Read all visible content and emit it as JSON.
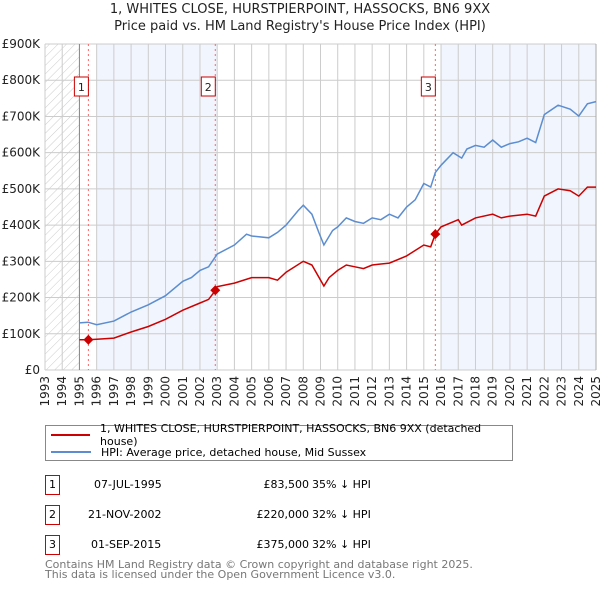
{
  "chart_data": {
    "type": "line",
    "title": "1, WHITES CLOSE, HURSTPIERPOINT, HASSOCKS, BN6 9XX",
    "subtitle": "Price paid vs. HM Land Registry's House Price Index (HPI)",
    "xlim": [
      1993,
      2025
    ],
    "ylim": [
      0,
      900000
    ],
    "x_ticks": [
      "1993",
      "1994",
      "1995",
      "1996",
      "1997",
      "1998",
      "1999",
      "2000",
      "2001",
      "2002",
      "2003",
      "2004",
      "2005",
      "2006",
      "2007",
      "2008",
      "2009",
      "2010",
      "2011",
      "2012",
      "2013",
      "2014",
      "2015",
      "2016",
      "2017",
      "2018",
      "2019",
      "2020",
      "2021",
      "2022",
      "2023",
      "2024",
      "2025"
    ],
    "y_ticks": [
      {
        "v": 0,
        "label": "£0"
      },
      {
        "v": 100000,
        "label": "£100K"
      },
      {
        "v": 200000,
        "label": "£200K"
      },
      {
        "v": 300000,
        "label": "£300K"
      },
      {
        "v": 400000,
        "label": "£400K"
      },
      {
        "v": 500000,
        "label": "£500K"
      },
      {
        "v": 600000,
        "label": "£600K"
      },
      {
        "v": 700000,
        "label": "£700K"
      },
      {
        "v": 800000,
        "label": "£800K"
      },
      {
        "v": 900000,
        "label": "£900K"
      }
    ],
    "grid": true,
    "hatched_range": [
      1993,
      1995
    ],
    "shaded_ranges": [
      [
        1996,
        2003
      ],
      [
        2016,
        2025
      ]
    ],
    "series": [
      {
        "name": "1, WHITES CLOSE, HURSTPIERPOINT, HASSOCKS, BN6 9XX (detached house)",
        "color": "#cc0000",
        "points": [
          [
            1995,
            83500
          ],
          [
            1995.5,
            83500
          ],
          [
            1996,
            85000
          ],
          [
            1997,
            88000
          ],
          [
            1998,
            105000
          ],
          [
            1999,
            120000
          ],
          [
            2000,
            140000
          ],
          [
            2001,
            165000
          ],
          [
            2002,
            185000
          ],
          [
            2002.5,
            195000
          ],
          [
            2002.9,
            220000
          ],
          [
            2003,
            230000
          ],
          [
            2004,
            240000
          ],
          [
            2005,
            255000
          ],
          [
            2006,
            255000
          ],
          [
            2006.5,
            248000
          ],
          [
            2007,
            270000
          ],
          [
            2008,
            300000
          ],
          [
            2008.5,
            290000
          ],
          [
            2009.2,
            232000
          ],
          [
            2009.5,
            255000
          ],
          [
            2010,
            275000
          ],
          [
            2010.5,
            290000
          ],
          [
            2011,
            285000
          ],
          [
            2011.5,
            280000
          ],
          [
            2012,
            290000
          ],
          [
            2013,
            295000
          ],
          [
            2014,
            315000
          ],
          [
            2015,
            345000
          ],
          [
            2015.4,
            340000
          ],
          [
            2015.67,
            375000
          ],
          [
            2016,
            395000
          ],
          [
            2017,
            415000
          ],
          [
            2017.2,
            400000
          ],
          [
            2018,
            420000
          ],
          [
            2019,
            430000
          ],
          [
            2019.5,
            420000
          ],
          [
            2020,
            425000
          ],
          [
            2021,
            430000
          ],
          [
            2021.5,
            425000
          ],
          [
            2022,
            480000
          ],
          [
            2022.8,
            500000
          ],
          [
            2023.5,
            495000
          ],
          [
            2024,
            480000
          ],
          [
            2024.5,
            505000
          ],
          [
            2025,
            505000
          ]
        ]
      },
      {
        "name": "HPI: Average price, detached house, Mid Sussex",
        "color": "#5b8dd0",
        "points": [
          [
            1995,
            130000
          ],
          [
            1995.5,
            132000
          ],
          [
            1996,
            125000
          ],
          [
            1997,
            135000
          ],
          [
            1998,
            160000
          ],
          [
            1999,
            180000
          ],
          [
            2000,
            205000
          ],
          [
            2001,
            245000
          ],
          [
            2001.5,
            255000
          ],
          [
            2002,
            275000
          ],
          [
            2002.5,
            285000
          ],
          [
            2003,
            320000
          ],
          [
            2004,
            345000
          ],
          [
            2004.7,
            375000
          ],
          [
            2005,
            370000
          ],
          [
            2006,
            365000
          ],
          [
            2006.5,
            380000
          ],
          [
            2007,
            400000
          ],
          [
            2007.7,
            440000
          ],
          [
            2008,
            455000
          ],
          [
            2008.5,
            430000
          ],
          [
            2008.9,
            380000
          ],
          [
            2009.2,
            345000
          ],
          [
            2009.7,
            385000
          ],
          [
            2010,
            395000
          ],
          [
            2010.5,
            420000
          ],
          [
            2011,
            410000
          ],
          [
            2011.5,
            405000
          ],
          [
            2012,
            420000
          ],
          [
            2012.5,
            415000
          ],
          [
            2013,
            430000
          ],
          [
            2013.5,
            420000
          ],
          [
            2014,
            450000
          ],
          [
            2014.5,
            470000
          ],
          [
            2015,
            515000
          ],
          [
            2015.4,
            505000
          ],
          [
            2015.67,
            545000
          ],
          [
            2016,
            565000
          ],
          [
            2016.7,
            600000
          ],
          [
            2017.2,
            585000
          ],
          [
            2017.5,
            610000
          ],
          [
            2018,
            620000
          ],
          [
            2018.5,
            615000
          ],
          [
            2019,
            635000
          ],
          [
            2019.5,
            615000
          ],
          [
            2020,
            625000
          ],
          [
            2020.5,
            630000
          ],
          [
            2021,
            640000
          ],
          [
            2021.5,
            628000
          ],
          [
            2022,
            705000
          ],
          [
            2022.8,
            731000
          ],
          [
            2023.5,
            720000
          ],
          [
            2024,
            701000
          ],
          [
            2024.5,
            735000
          ],
          [
            2025,
            741000
          ]
        ]
      }
    ],
    "sales": [
      {
        "id": "1",
        "x": 1995.52,
        "price": 83500
      },
      {
        "id": "2",
        "x": 2002.89,
        "price": 220000
      },
      {
        "id": "3",
        "x": 2015.67,
        "price": 375000
      }
    ]
  },
  "legend": [
    {
      "label": "1, WHITES CLOSE, HURSTPIERPOINT, HASSOCKS, BN6 9XX (detached house)",
      "color": "#cc0000"
    },
    {
      "label": "HPI: Average price, detached house, Mid Sussex",
      "color": "#5b8dd0"
    }
  ],
  "table": [
    {
      "id": "1",
      "date": "07-JUL-1995",
      "price": "£83,500",
      "hpi": "35% ↓ HPI"
    },
    {
      "id": "2",
      "date": "21-NOV-2002",
      "price": "£220,000",
      "hpi": "32% ↓ HPI"
    },
    {
      "id": "3",
      "date": "01-SEP-2015",
      "price": "£375,000",
      "hpi": "32% ↓ HPI"
    }
  ],
  "footer": {
    "line1": "Contains HM Land Registry data © Crown copyright and database right 2025.",
    "line2": "This data is licensed under the Open Government Licence v3.0."
  }
}
